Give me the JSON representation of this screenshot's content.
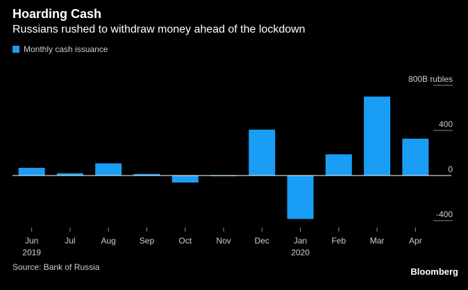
{
  "header": {
    "title": "Hoarding Cash",
    "subtitle": "Russians rushed to withdraw money ahead of the lockdown"
  },
  "legend": {
    "label": "Monthly cash issuance"
  },
  "footer": {
    "source": "Source: Bank of Russia",
    "brand": "Bloomberg"
  },
  "colors": {
    "bar": "#1a9ef5",
    "background": "#000000",
    "zero_line": "#ffffff",
    "tick_text": "#cfcfcf"
  },
  "chart_data": {
    "type": "bar",
    "categories": [
      "Jun",
      "Jul",
      "Aug",
      "Sep",
      "Oct",
      "Nov",
      "Dec",
      "Jan",
      "Feb",
      "Mar",
      "Apr"
    ],
    "year_labels": [
      "2019",
      "",
      "",
      "",
      "",
      "",
      "",
      "2020",
      "",
      "",
      ""
    ],
    "series": [
      {
        "name": "Monthly cash issuance",
        "values": [
          68,
          20,
          108,
          14,
          -62,
          -5,
          407,
          -385,
          188,
          700,
          327
        ]
      }
    ],
    "ylim": [
      -420,
      880
    ],
    "yticks": [
      {
        "value": 800,
        "label": "800B rubles"
      },
      {
        "value": 400,
        "label": "400"
      },
      {
        "value": 0,
        "label": "0"
      },
      {
        "value": -400,
        "label": "-400"
      }
    ],
    "ylabel": "",
    "xlabel": "",
    "grid": false,
    "legend_position": "top-left",
    "y_axis_side": "right"
  }
}
